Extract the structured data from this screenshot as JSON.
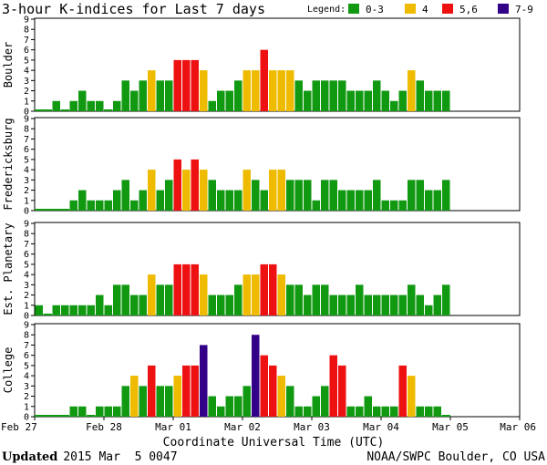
{
  "chart_data": {
    "type": "bar",
    "title": "3-hour K-indices for Last 7 days",
    "legend": {
      "label": "Legend:",
      "items": [
        {
          "label": "0-3",
          "color": "#119911"
        },
        {
          "label": "4",
          "color": "#eebb00"
        },
        {
          "label": "5,6",
          "color": "#ee1111"
        },
        {
          "label": "7-9",
          "color": "#330088"
        }
      ]
    },
    "xlabel": "Coordinate Universal Time (UTC)",
    "x_ticks": [
      "Feb 27",
      "Feb 28",
      "Mar 01",
      "Mar 02",
      "Mar 03",
      "Mar 04",
      "Mar 05",
      "Mar 06"
    ],
    "y_ticks": [
      "0",
      "1",
      "2",
      "3",
      "4",
      "5",
      "6",
      "7",
      "8",
      "9"
    ],
    "ylim": [
      0,
      9
    ],
    "bins_per_day": 8,
    "days": 7,
    "series": [
      {
        "name": "Boulder",
        "values": [
          0,
          0,
          1,
          0,
          1,
          2,
          1,
          1,
          0,
          1,
          3,
          2,
          3,
          4,
          3,
          3,
          5,
          5,
          5,
          4,
          1,
          2,
          2,
          3,
          4,
          4,
          6,
          4,
          4,
          4,
          3,
          2,
          3,
          3,
          3,
          3,
          2,
          2,
          2,
          3,
          2,
          1,
          2,
          4,
          3,
          2,
          2,
          2
        ]
      },
      {
        "name": "Fredericksburg",
        "values": [
          0,
          0,
          0,
          0,
          1,
          2,
          1,
          1,
          1,
          2,
          3,
          1,
          2,
          4,
          2,
          3,
          5,
          4,
          5,
          4,
          3,
          2,
          2,
          2,
          4,
          3,
          2,
          4,
          4,
          3,
          3,
          3,
          1,
          3,
          3,
          2,
          2,
          2,
          2,
          3,
          1,
          1,
          1,
          3,
          3,
          2,
          2,
          3
        ]
      },
      {
        "name": "Est. Planetary",
        "values": [
          1,
          0,
          1,
          1,
          1,
          1,
          1,
          2,
          1,
          3,
          3,
          2,
          2,
          4,
          3,
          3,
          5,
          5,
          5,
          4,
          2,
          2,
          2,
          3,
          4,
          4,
          5,
          5,
          4,
          3,
          3,
          2,
          3,
          3,
          2,
          2,
          2,
          3,
          2,
          2,
          2,
          2,
          2,
          3,
          2,
          1,
          2,
          3
        ]
      },
      {
        "name": "College",
        "values": [
          0,
          0,
          0,
          0,
          1,
          1,
          0,
          1,
          1,
          1,
          3,
          4,
          3,
          5,
          3,
          3,
          4,
          5,
          5,
          7,
          2,
          1,
          2,
          2,
          3,
          8,
          6,
          5,
          4,
          3,
          1,
          1,
          2,
          3,
          6,
          5,
          1,
          1,
          2,
          1,
          1,
          1,
          5,
          4,
          1,
          1,
          1,
          0
        ]
      }
    ]
  },
  "footer": {
    "updated_label": "Updated",
    "updated_time": "2015 Mar  5 0047",
    "source": "NOAA/SWPC Boulder, CO USA"
  }
}
